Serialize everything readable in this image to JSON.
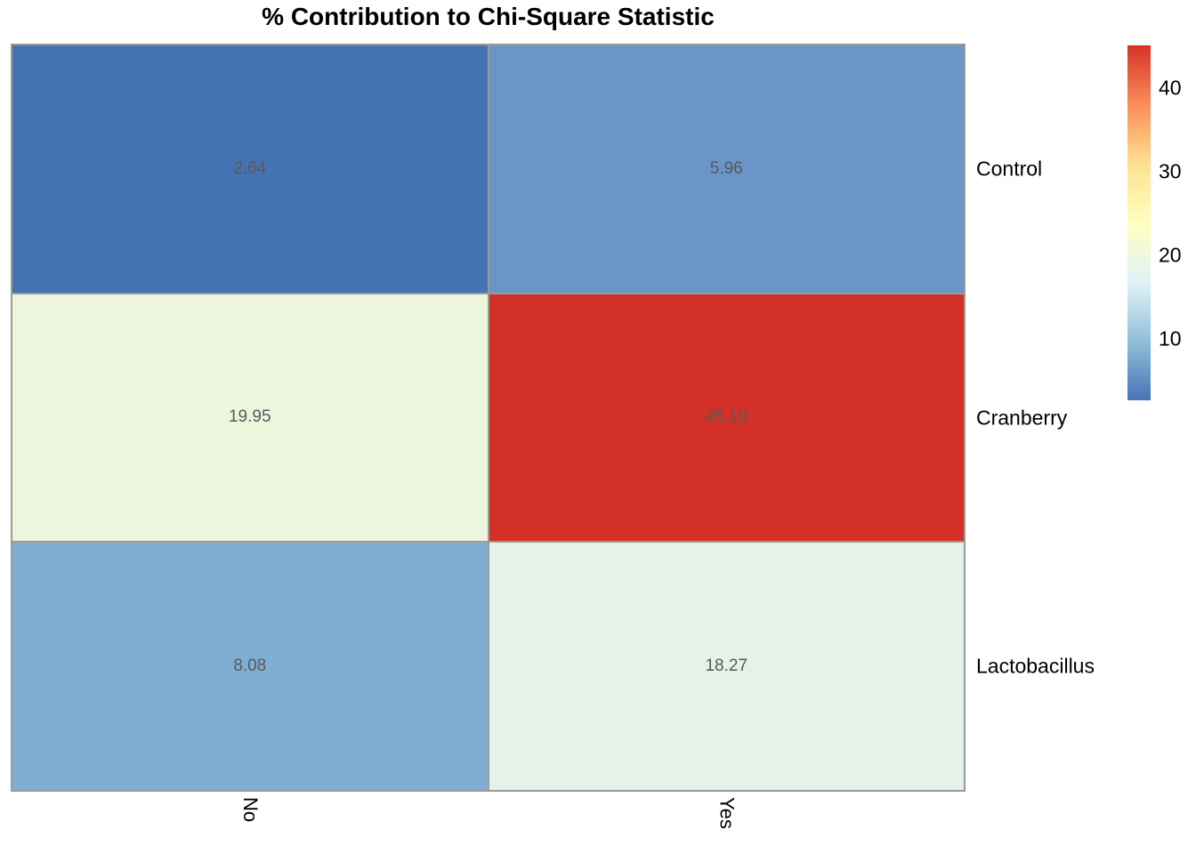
{
  "title": "% Contribution to Chi-Square Statistic",
  "chart_data": {
    "type": "heatmap",
    "title": "% Contribution to Chi-Square Statistic",
    "rows": [
      "Control",
      "Cranberry",
      "Lactobacillus"
    ],
    "columns": [
      "No",
      "Yes"
    ],
    "values": [
      [
        2.64,
        5.96
      ],
      [
        19.95,
        45.1
      ],
      [
        8.08,
        18.27
      ]
    ],
    "value_labels": [
      [
        "2.64",
        "5.96"
      ],
      [
        "19.95",
        "45.10"
      ],
      [
        "8.08",
        "18.27"
      ]
    ],
    "cell_colors": [
      [
        "#4473b4",
        "#6996c7"
      ],
      [
        "#edf6dd",
        "#d33027"
      ],
      [
        "#7faed2",
        "#e4f2e9"
      ]
    ],
    "row_label_side": "right",
    "column_label_rotation_deg": 90,
    "grid_on": true,
    "colorbar": {
      "position": "right",
      "min": 2.64,
      "max": 45.1,
      "ticks": [
        10,
        20,
        30,
        40
      ],
      "tick_labels": [
        "10",
        "20",
        "30",
        "40"
      ],
      "gradient_top_to_bottom": [
        "#d73027",
        "#fc8d59",
        "#fee090",
        "#ffffbf",
        "#e0f3f8",
        "#91bfdb",
        "#4575b4"
      ]
    },
    "colors": {
      "grid_line": "#9b9b96",
      "cell_text": "#595959",
      "label_text": "#000000",
      "title_text": "#000000",
      "background": "#ffffff"
    }
  }
}
